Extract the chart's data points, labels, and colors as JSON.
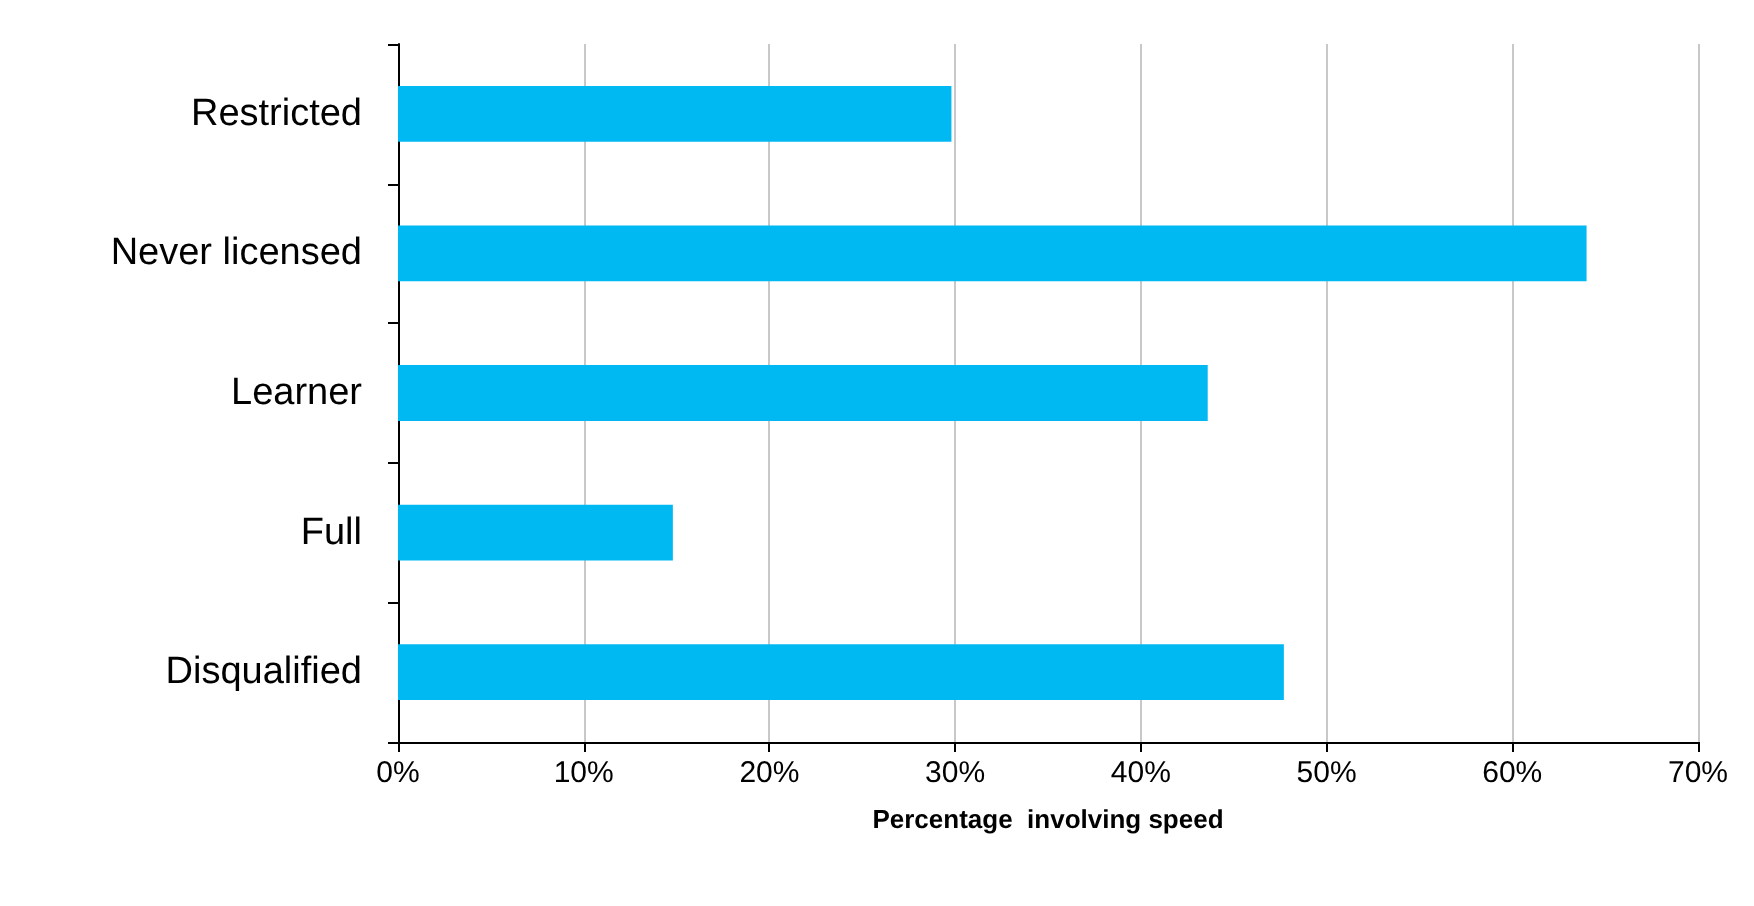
{
  "chart_data": {
    "type": "bar",
    "orientation": "horizontal",
    "xlabel": "Percentage  involving speed",
    "categories": [
      "Restricted",
      "Never licensed",
      "Learner",
      "Full",
      "Disqualified"
    ],
    "values": [
      29.8,
      64.0,
      43.6,
      14.8,
      47.7
    ],
    "color": "#00b9f2",
    "xlim": [
      0,
      70
    ],
    "xticks": [
      {
        "value": 0,
        "label": "0%"
      },
      {
        "value": 10,
        "label": "10%"
      },
      {
        "value": 20,
        "label": "20%"
      },
      {
        "value": 30,
        "label": "30%"
      },
      {
        "value": 40,
        "label": "40%"
      },
      {
        "value": 50,
        "label": "50%"
      },
      {
        "value": 60,
        "label": "60%"
      },
      {
        "value": 70,
        "label": "70%"
      }
    ],
    "grid": "x"
  }
}
